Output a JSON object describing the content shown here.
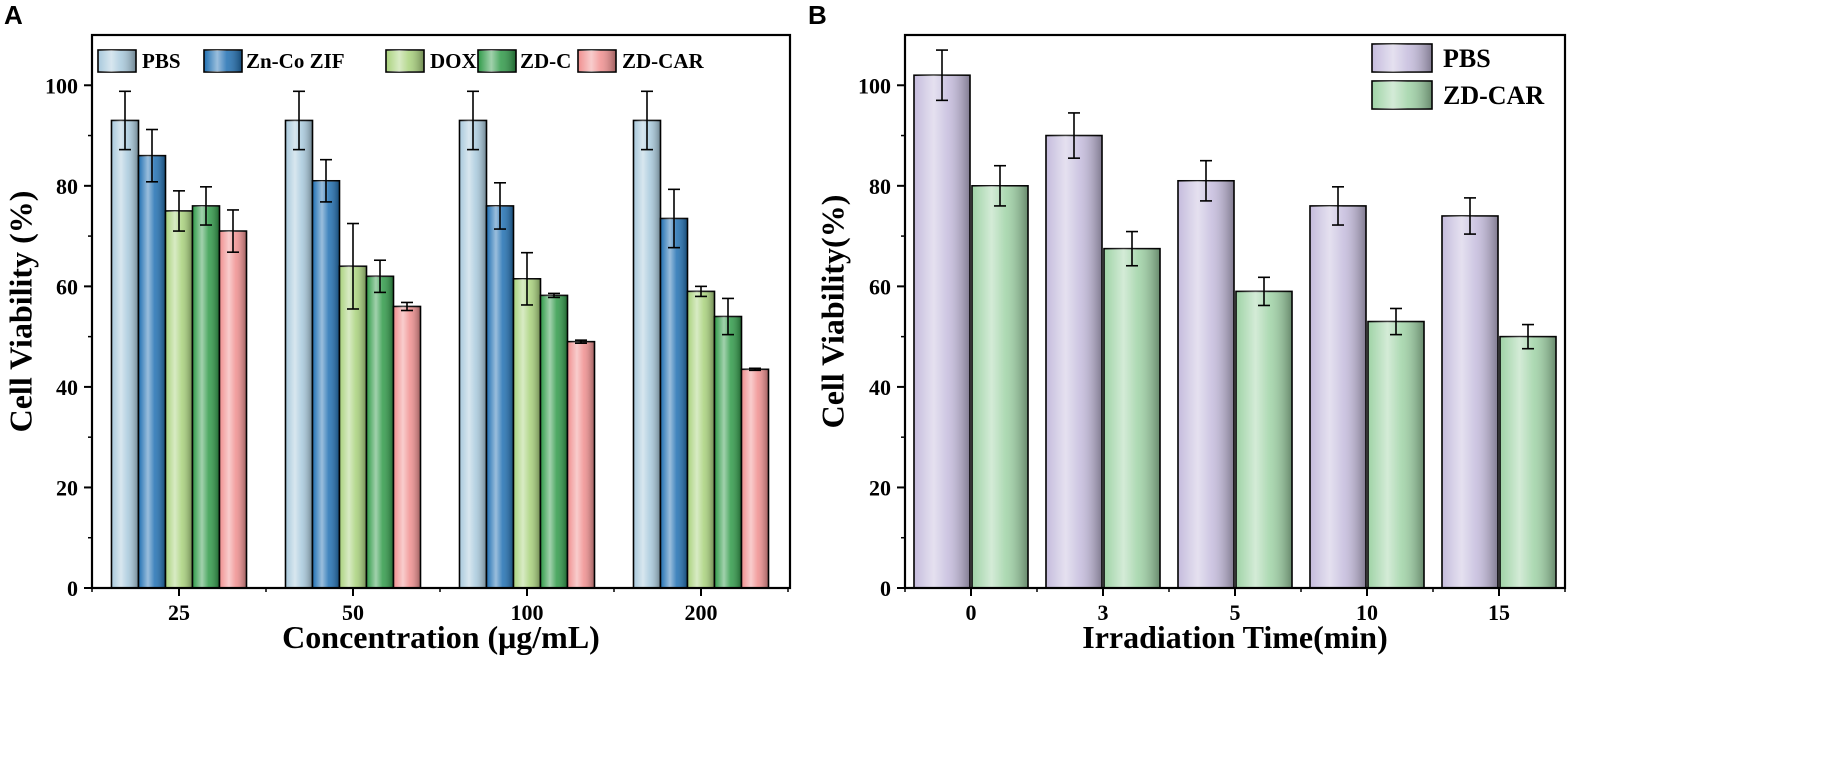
{
  "chart_data": [
    {
      "panel": "A",
      "type": "bar",
      "xlabel": "Concentration (μg/mL)",
      "ylabel": "Cell Viability (%)",
      "ylim": [
        0,
        110
      ],
      "yticks": [
        0,
        20,
        40,
        60,
        80,
        100
      ],
      "categories": [
        "25",
        "50",
        "100",
        "200"
      ],
      "series": [
        {
          "name": "PBS",
          "color": "#a8c9dc",
          "values": [
            93,
            93,
            93,
            93
          ],
          "errors": [
            5.8,
            5.8,
            5.8,
            5.8
          ]
        },
        {
          "name": "Zn-Co ZIF",
          "color": "#1f6fb2",
          "values": [
            86,
            81,
            76,
            73.5
          ],
          "errors": [
            5.2,
            4.2,
            4.6,
            5.8
          ]
        },
        {
          "name": "DOX",
          "color": "#a9d27c",
          "values": [
            75,
            64,
            61.5,
            59
          ],
          "errors": [
            4.0,
            8.5,
            5.2,
            1.0
          ]
        },
        {
          "name": "ZD-C",
          "color": "#2f9a48",
          "values": [
            76,
            62,
            58.2,
            54
          ],
          "errors": [
            3.8,
            3.2,
            0.4,
            3.6
          ]
        },
        {
          "name": "ZD-CAR",
          "color": "#f08f8f",
          "values": [
            71,
            56,
            49,
            43.5
          ],
          "errors": [
            4.2,
            0.8,
            0.3,
            0.2
          ]
        }
      ],
      "legend_position": "top"
    },
    {
      "panel": "B",
      "type": "bar",
      "xlabel": "Irradiation Time(min)",
      "ylabel": "Cell Viability(%)",
      "ylim": [
        0,
        110
      ],
      "yticks": [
        0,
        20,
        40,
        60,
        80,
        100
      ],
      "categories": [
        "0",
        "3",
        "5",
        "10",
        "15"
      ],
      "series": [
        {
          "name": "PBS",
          "color": "#c5bcdd",
          "values": [
            102,
            90,
            81,
            76,
            74
          ],
          "errors": [
            5.0,
            4.5,
            4.0,
            3.8,
            3.6
          ]
        },
        {
          "name": "ZD-CAR",
          "color": "#9fd3a6",
          "values": [
            80,
            67.5,
            59,
            53,
            50
          ],
          "errors": [
            4.0,
            3.4,
            2.8,
            2.6,
            2.4
          ]
        }
      ],
      "legend_position": "top-right"
    }
  ]
}
